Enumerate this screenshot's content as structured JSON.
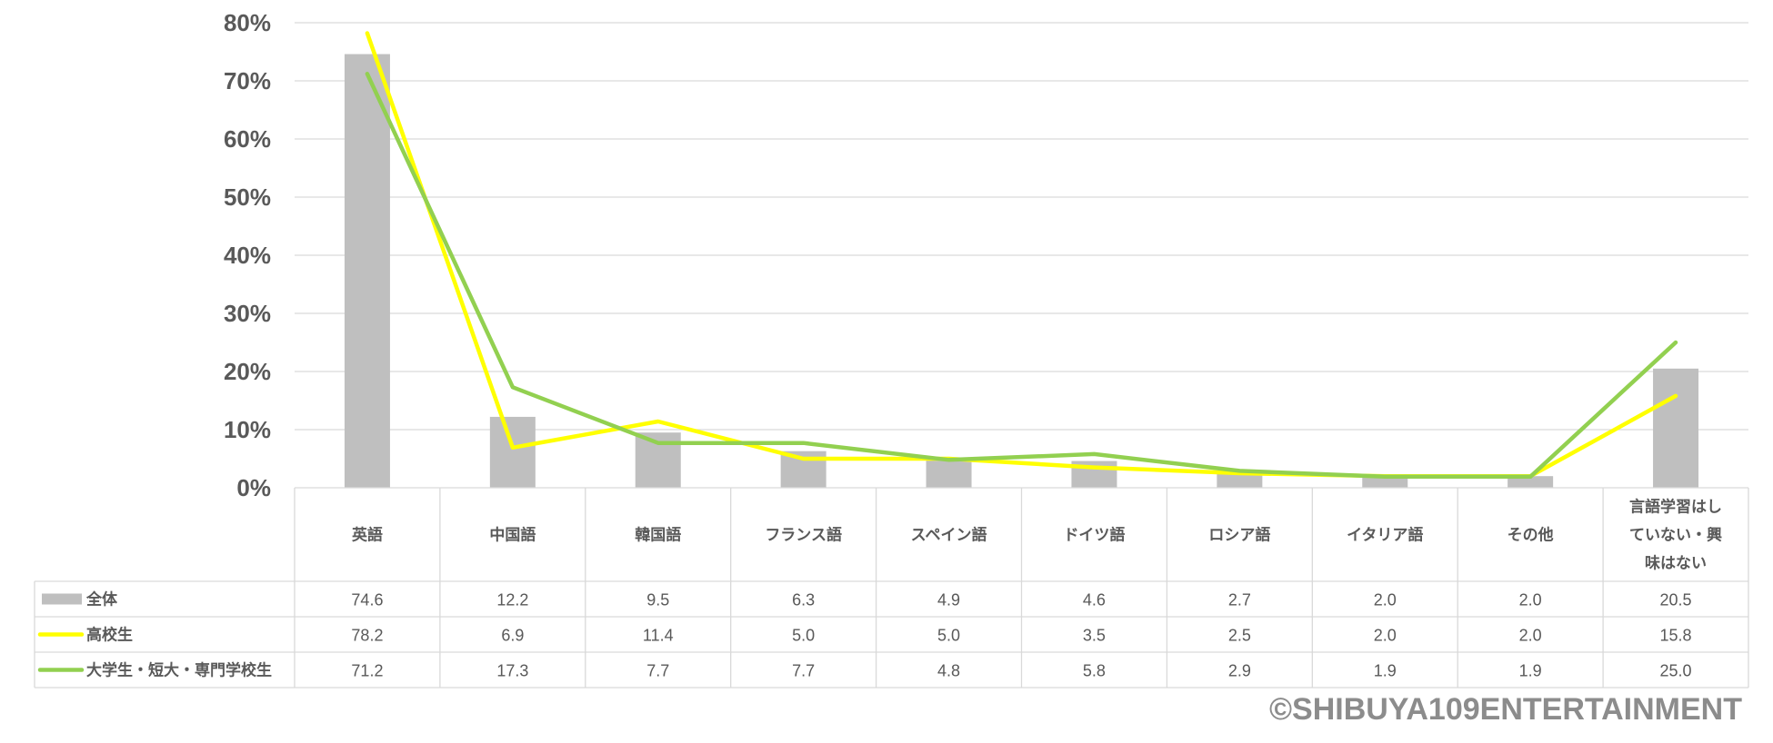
{
  "chart_data": {
    "type": "bar",
    "categories": [
      "英語",
      "中国語",
      "韓国語",
      "フランス語",
      "スペイン語",
      "ドイツ語",
      "ロシア語",
      "イタリア語",
      "その他",
      "言語学習はしていない・興味はない"
    ],
    "category_lines": [
      [
        "英語"
      ],
      [
        "中国語"
      ],
      [
        "韓国語"
      ],
      [
        "フランス語"
      ],
      [
        "スペイン語"
      ],
      [
        "ドイツ語"
      ],
      [
        "ロシア語"
      ],
      [
        "イタリア語"
      ],
      [
        "その他"
      ],
      [
        "言語学習はし",
        "ていない・興",
        "味はない"
      ]
    ],
    "series": [
      {
        "name": "全体",
        "kind": "bar",
        "color": "#bfbfbf",
        "values": [
          74.6,
          12.2,
          9.5,
          6.3,
          4.9,
          4.6,
          2.7,
          2.0,
          2.0,
          20.5
        ]
      },
      {
        "name": "高校生",
        "kind": "line",
        "color": "#ffff00",
        "values": [
          78.2,
          6.9,
          11.4,
          5.0,
          5.0,
          3.5,
          2.5,
          2.0,
          2.0,
          15.8
        ]
      },
      {
        "name": "大学生・短大・専門学校生",
        "kind": "line",
        "color": "#92d050",
        "values": [
          71.2,
          17.3,
          7.7,
          7.7,
          4.8,
          5.8,
          2.9,
          1.9,
          1.9,
          25.0
        ]
      }
    ],
    "value_labels": [
      [
        "74.6",
        "12.2",
        "9.5",
        "6.3",
        "4.9",
        "4.6",
        "2.7",
        "2.0",
        "2.0",
        "20.5"
      ],
      [
        "78.2",
        "6.9",
        "11.4",
        "5.0",
        "5.0",
        "3.5",
        "2.5",
        "2.0",
        "2.0",
        "15.8"
      ],
      [
        "71.2",
        "17.3",
        "7.7",
        "7.7",
        "4.8",
        "5.8",
        "2.9",
        "1.9",
        "1.9",
        "25.0"
      ]
    ],
    "y_ticks": [
      "0%",
      "10%",
      "20%",
      "30%",
      "40%",
      "50%",
      "60%",
      "70%",
      "80%"
    ],
    "ylim": [
      0,
      80
    ],
    "grid": true,
    "legend": "data-table"
  },
  "copyright": "©SHIBUYA109ENTERTAINMENT"
}
